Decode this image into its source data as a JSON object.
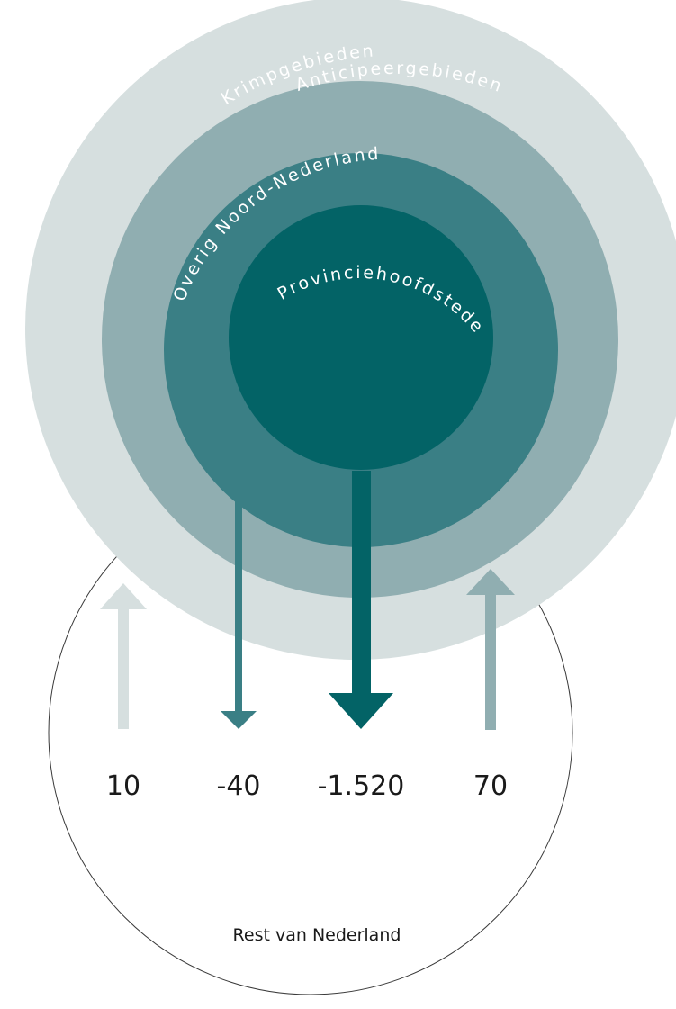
{
  "regions": [
    {
      "key": "krimp",
      "label": "Krimpgebieden",
      "color": "#d6dfdf"
    },
    {
      "key": "anticipeer",
      "label": "Anticipeergebieden",
      "color": "#90aeb1"
    },
    {
      "key": "overig",
      "label": "Overig Noord-Nederland",
      "color": "#3a7f85"
    },
    {
      "key": "provincie",
      "label": "Provinciehoofdsteden",
      "color": "#036366"
    }
  ],
  "rest_label": "Rest van Nederland",
  "flows": [
    {
      "region": "Krimpgebieden",
      "value": 10,
      "display": "10",
      "direction": "up",
      "color": "#d6dfdf"
    },
    {
      "region": "Overig Noord-Nederland",
      "value": -40,
      "display": "-40",
      "direction": "down",
      "color": "#3a7f85"
    },
    {
      "region": "Provinciehoofdsteden",
      "value": -1520,
      "display": "-1.520",
      "direction": "down",
      "color": "#036366"
    },
    {
      "region": "Anticipeergebieden",
      "value": 70,
      "display": "70",
      "direction": "up",
      "color": "#90aeb1"
    }
  ]
}
